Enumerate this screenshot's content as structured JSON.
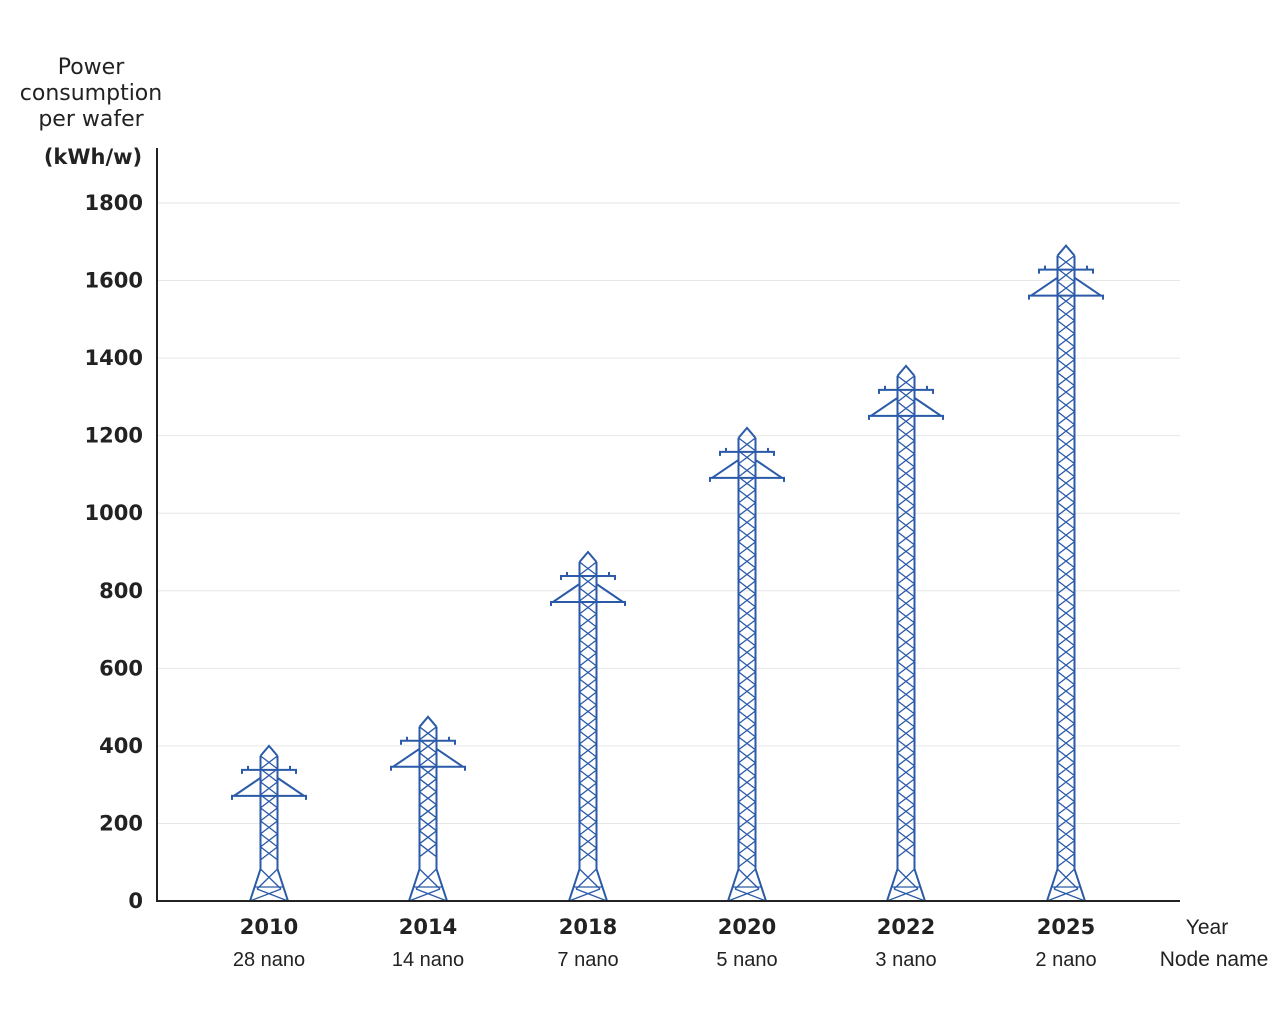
{
  "chart_data": {
    "type": "bar",
    "ylabel_lines": [
      "Power",
      "consumption",
      "per wafer"
    ],
    "yunit": "(kWh/w)",
    "xlabel_lines": [
      "Year",
      "Node name"
    ],
    "categories": [
      "2010",
      "2014",
      "2018",
      "2020",
      "2022",
      "2025"
    ],
    "subcategories": [
      "28 nano",
      "14 nano",
      "7 nano",
      "5 nano",
      "3 nano",
      "2 nano"
    ],
    "values": [
      400,
      475,
      900,
      1220,
      1380,
      1690
    ],
    "ylim": [
      0,
      1800
    ],
    "yticks": [
      "0",
      "200",
      "400",
      "600",
      "800",
      "1000",
      "1200",
      "1400",
      "1600",
      "1800"
    ],
    "grid": true,
    "bar_color": "#2a5aa8"
  }
}
